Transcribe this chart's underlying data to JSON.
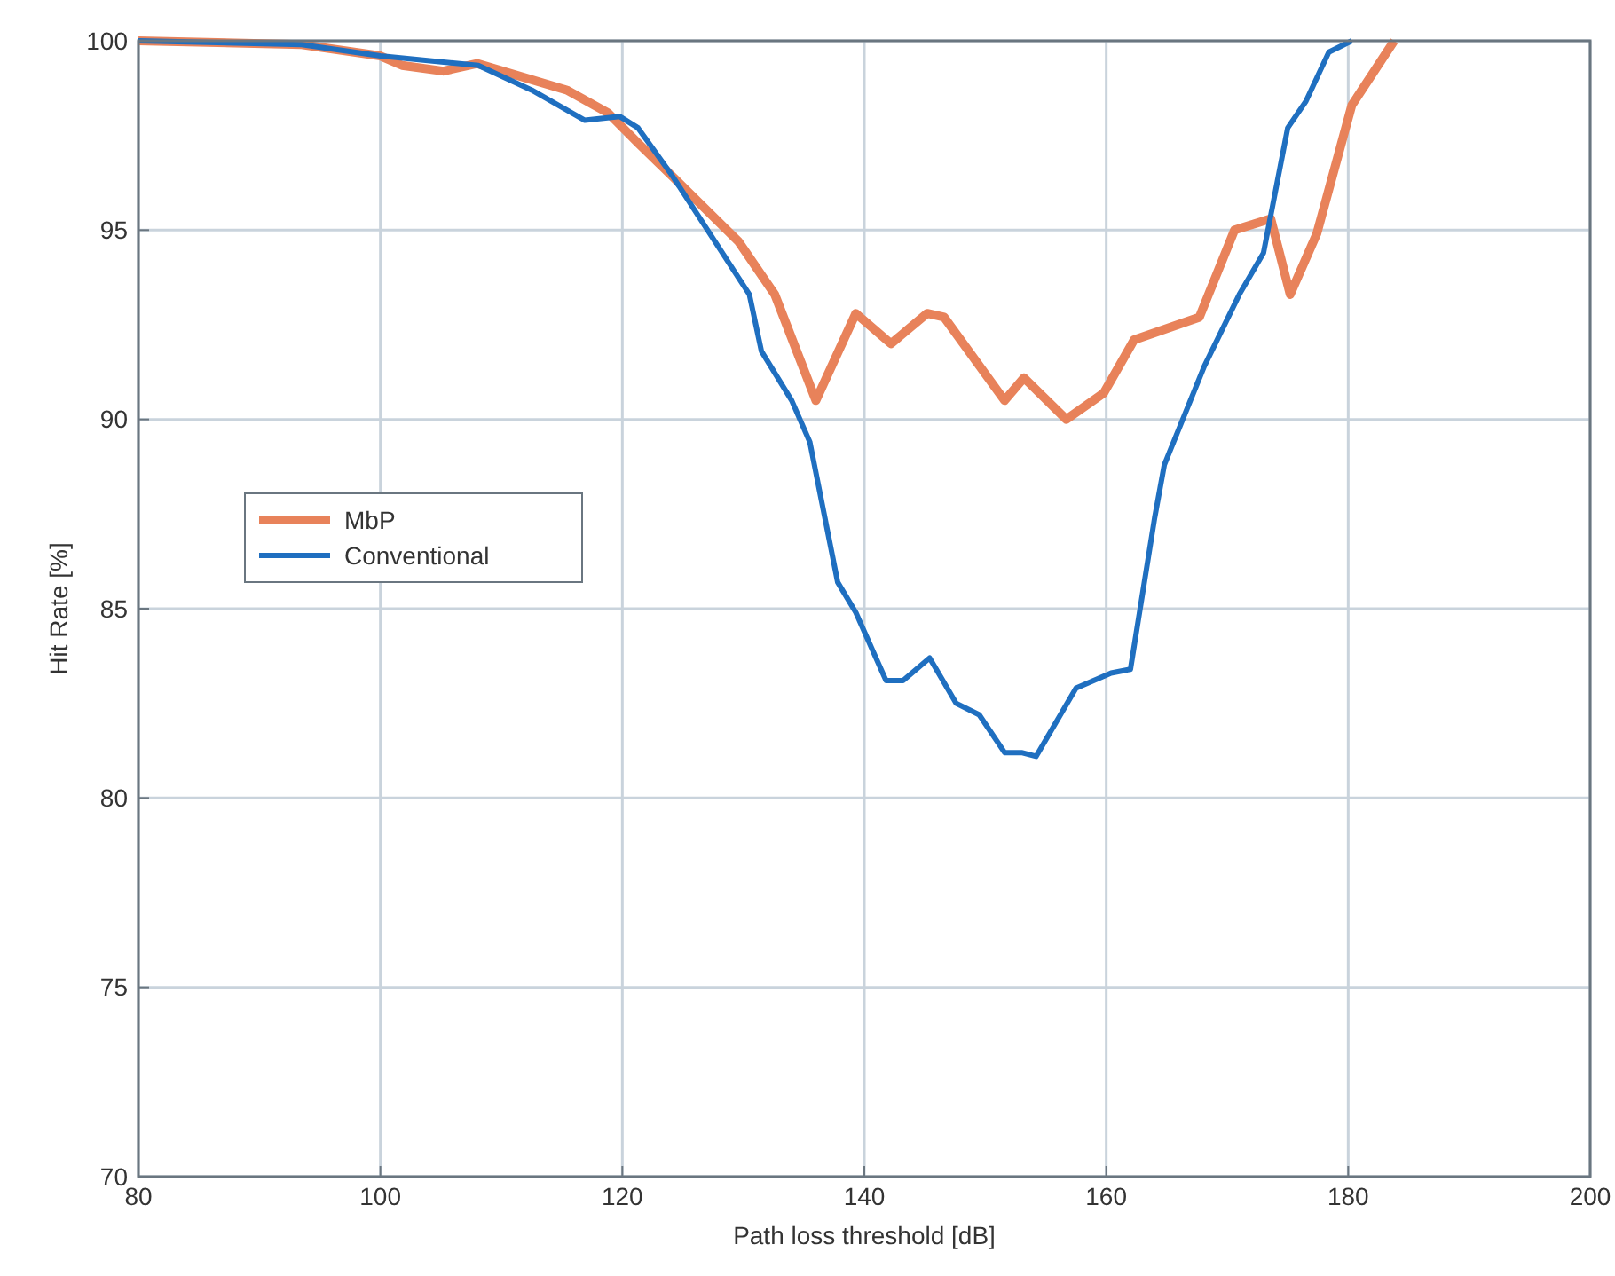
{
  "chart_data": {
    "type": "line",
    "xlabel": "Path loss threshold [dB]",
    "ylabel": "Hit Rate [%]",
    "xlim": [
      80,
      200
    ],
    "ylim": [
      70,
      100
    ],
    "xticks": [
      80,
      100,
      120,
      140,
      160,
      180,
      200
    ],
    "yticks": [
      70,
      75,
      80,
      85,
      90,
      95,
      100
    ],
    "grid": true,
    "legend": "left",
    "line_style": "solid",
    "marker": "none",
    "series": [
      {
        "name": "MbP",
        "color": "#e8825a",
        "x": [
          80,
          93.5,
          100,
          101.8,
          105.2,
          108,
          115.4,
          118.8,
          121.3,
          124.2,
          129.6,
          132.6,
          136,
          139.3,
          142.2,
          145.2,
          146.6,
          151.6,
          153.2,
          156.7,
          159.8,
          162.3,
          167.7,
          170.6,
          173.6,
          175.2,
          177.4,
          180.3,
          183.8
        ],
        "values": [
          100,
          99.9,
          99.6,
          99.35,
          99.2,
          99.4,
          98.7,
          98.1,
          97.3,
          96.4,
          94.7,
          93.3,
          90.5,
          92.8,
          92,
          92.8,
          92.7,
          90.5,
          91.1,
          90,
          90.7,
          92.1,
          92.7,
          95,
          95.3,
          93.3,
          94.9,
          98.3,
          100
        ]
      },
      {
        "name": "Conventional",
        "color": "#1f6fc0",
        "x": [
          80,
          93.5,
          100,
          108.1,
          112.5,
          116.9,
          119.8,
          121.3,
          124.2,
          130.5,
          131.5,
          134,
          135.5,
          137.8,
          139.3,
          141.8,
          143.2,
          145.4,
          147.6,
          149.5,
          151.6,
          153,
          154.2,
          157.5,
          160.4,
          162,
          164,
          164.8,
          168.1,
          171,
          173,
          175,
          176.5,
          178.4,
          180.3
        ],
        "values": [
          100,
          99.9,
          99.6,
          99.35,
          98.7,
          97.9,
          98,
          97.7,
          96.4,
          93.3,
          91.8,
          90.5,
          89.4,
          85.7,
          84.9,
          83.1,
          83.1,
          83.7,
          82.5,
          82.2,
          81.2,
          81.2,
          81.1,
          82.9,
          83.3,
          83.4,
          87.4,
          88.8,
          91.4,
          93.3,
          94.4,
          97.7,
          98.4,
          99.7,
          100
        ]
      }
    ]
  }
}
